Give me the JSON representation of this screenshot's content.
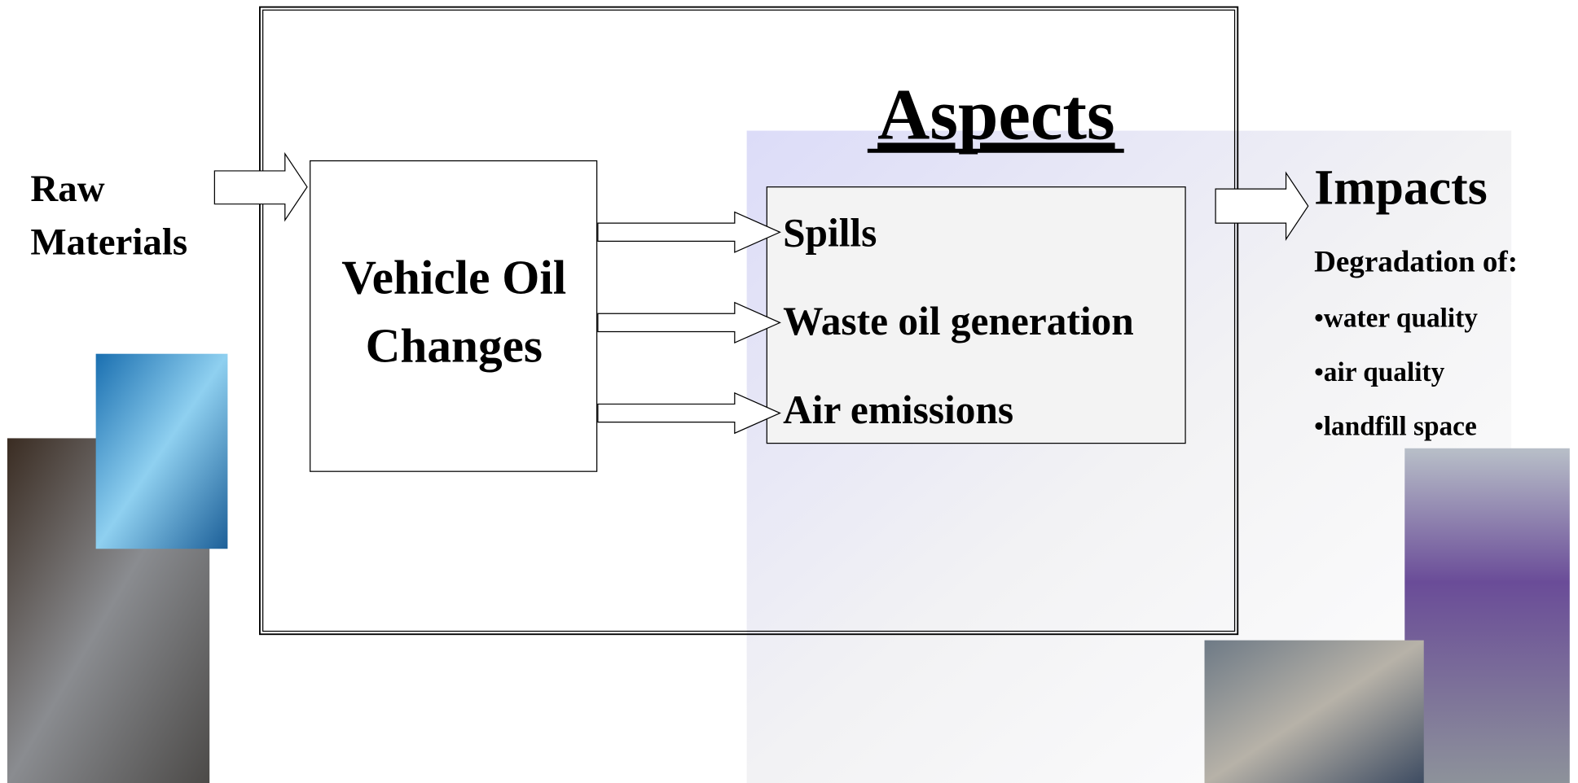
{
  "input": {
    "lines": [
      "Raw",
      "Materials"
    ]
  },
  "process": {
    "lines": [
      "Vehicle Oil",
      "Changes"
    ]
  },
  "aspects": {
    "title": "Aspects",
    "items": [
      "Spills",
      "Waste oil generation",
      "Air emissions"
    ]
  },
  "impacts": {
    "title": "Impacts",
    "subtitle": "Degradation of:",
    "items": [
      "•water quality",
      "•air quality",
      "•landfill space"
    ]
  }
}
